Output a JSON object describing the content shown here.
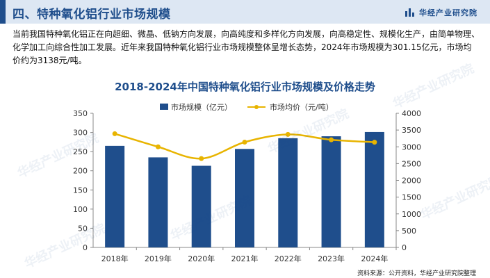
{
  "header": {
    "title": "四、特种氧化铝行业市场规模",
    "brand": "华经产业研究院"
  },
  "intro": "当前我国特种氧化铝正在向超细、微晶、低钠方向发展，向高纯度和多样化方向发展，向高稳定性、规模化生产，由简单物理、化学加工向综合性加工发展。近年来我国特种氧化铝行业市场规模整体呈增长态势，2024年市场规模为301.15亿元，市场均价约为3138元/吨。",
  "watermark": "华经产业研究院",
  "source": "资料来源：公开资料，华经产业研究院整理",
  "colors": {
    "bar": "#1f4e8c",
    "line": "#e8b400",
    "title": "#1f4e8c"
  },
  "chart_data": {
    "type": "bar",
    "title": "2018-2024年中国特种氧化铝行业市场规模及价格走势",
    "categories": [
      "2018年",
      "2019年",
      "2020年",
      "2021年",
      "2022年",
      "2023年",
      "2024年"
    ],
    "series": [
      {
        "name": "市场规模（亿元）",
        "type": "bar",
        "axis": "left",
        "values": [
          265,
          235,
          213,
          257,
          285,
          290,
          301.15
        ]
      },
      {
        "name": "市场均价（元/吨）",
        "type": "line",
        "axis": "right",
        "values": [
          3390,
          3000,
          2650,
          3140,
          3370,
          3210,
          3138
        ]
      }
    ],
    "y_left": {
      "min": 0,
      "max": 350,
      "ticks": [
        0,
        50,
        100,
        150,
        200,
        250,
        300,
        350
      ]
    },
    "y_right": {
      "min": 0,
      "max": 4000,
      "ticks": [
        0,
        500,
        1000,
        1500,
        2000,
        2500,
        3000,
        3500,
        4000
      ]
    },
    "legend_position": "top-center",
    "grid": false
  }
}
